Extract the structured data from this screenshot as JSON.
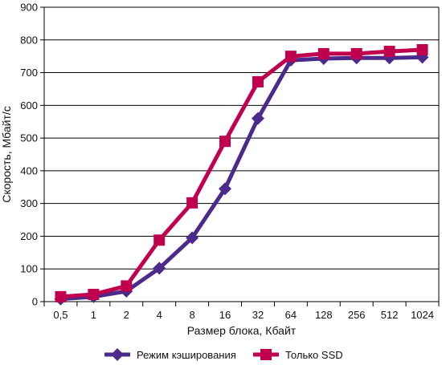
{
  "chart_data": {
    "type": "line",
    "xlabel": "Размер блока, Кбайт",
    "ylabel": "Скорость, Мбайт/с",
    "categories": [
      "0,5",
      "1",
      "2",
      "4",
      "8",
      "16",
      "32",
      "64",
      "128",
      "256",
      "512",
      "1024"
    ],
    "ylim": [
      0,
      900
    ],
    "yticks": [
      0,
      100,
      200,
      300,
      400,
      500,
      600,
      700,
      800,
      900
    ],
    "grid": true,
    "legend_position": "bottom",
    "series": [
      {
        "name": "Режим кэширования",
        "color": "#4B2A8C",
        "marker": "diamond",
        "values": [
          8,
          15,
          32,
          102,
          195,
          345,
          560,
          738,
          743,
          745,
          745,
          747
        ]
      },
      {
        "name": "Только SSD",
        "color": "#C0004E",
        "marker": "square",
        "values": [
          15,
          22,
          48,
          188,
          302,
          490,
          672,
          750,
          758,
          758,
          765,
          770
        ]
      }
    ]
  }
}
